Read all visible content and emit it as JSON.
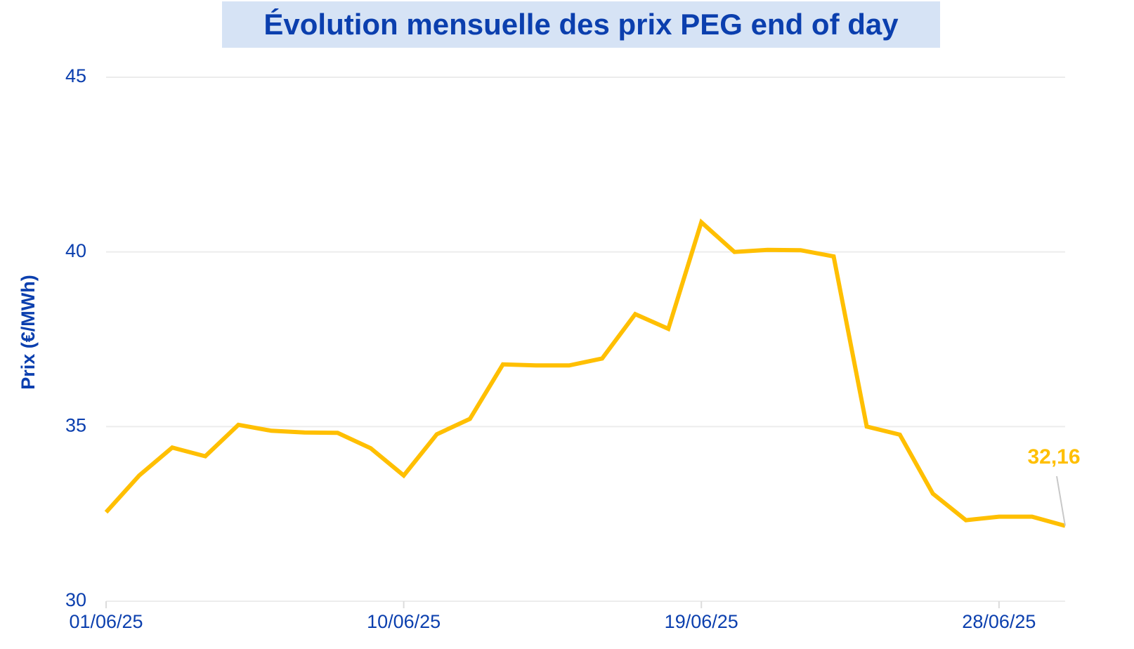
{
  "chart_data": {
    "type": "line",
    "title": "Évolution mensuelle des prix PEG end of day",
    "ylabel": "Prix (€/MWh)",
    "xlabel": "",
    "ylim": [
      30,
      45
    ],
    "yticks": [
      "30",
      "35",
      "40",
      "45"
    ],
    "xticks": [
      "01/06/25",
      "10/06/25",
      "19/06/25",
      "28/06/25"
    ],
    "grid": true,
    "colors": {
      "line": "#ffbf00",
      "text": "#0b3fae",
      "grid": "#ececec",
      "title_bg": "#d6e3f5",
      "leader": "#c8c8c8"
    },
    "series": [
      {
        "x": [
          "01/06/25",
          "02/06/25",
          "03/06/25",
          "04/06/25",
          "05/06/25",
          "06/06/25",
          "07/06/25",
          "08/06/25",
          "09/06/25",
          "10/06/25",
          "11/06/25",
          "12/06/25",
          "13/06/25",
          "14/06/25",
          "15/06/25",
          "16/06/25",
          "17/06/25",
          "18/06/25",
          "19/06/25",
          "20/06/25",
          "21/06/25",
          "22/06/25",
          "23/06/25",
          "24/06/25",
          "25/06/25",
          "26/06/25",
          "27/06/25",
          "28/06/25",
          "29/06/25",
          "30/06/25"
        ],
        "values": [
          32.55,
          33.6,
          34.4,
          34.15,
          35.05,
          34.88,
          34.83,
          34.82,
          34.38,
          33.6,
          34.78,
          35.22,
          36.78,
          36.75,
          36.75,
          36.95,
          38.22,
          37.8,
          40.85,
          40.0,
          40.06,
          40.05,
          39.87,
          35.0,
          34.77,
          33.08,
          32.32,
          32.42,
          32.42,
          32.16
        ]
      }
    ],
    "last_value_label": "32,16"
  }
}
